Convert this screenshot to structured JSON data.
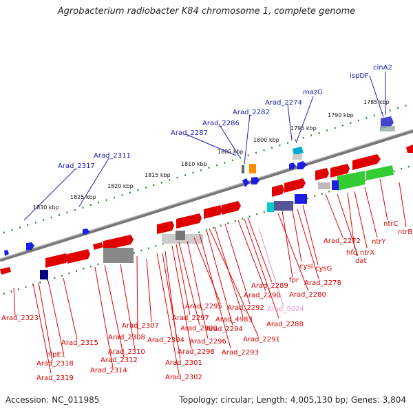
{
  "title": "Agrobacterium radiobacter K84 chromosome 1, complete genome",
  "accession": "Accession: NC_011985",
  "topology": "Topology: circular; Length: 4,005,130 bp; Genes: 3,804",
  "colors": {
    "forward_gene": "#e00000",
    "reverse_gene": "#1e1ee0",
    "label_forward": "#d80000",
    "label_reverse": "#1a1ab0",
    "pseudo_label": "#f090c8",
    "axis_dots": "#2e8b2e",
    "backbone": "#8a8a8a"
  },
  "scale_ticks": [
    "1785 kbp",
    "1790 kbp",
    "1795 kbp",
    "1800 kbp",
    "1805 kbp",
    "1810 kbp",
    "1815 kbp",
    "1820 kbp",
    "1825 kbp",
    "1830 kbp"
  ],
  "top_labels": [
    "cinA2",
    "ispDF",
    "mazG",
    "Arad_2274",
    "Arad_2282",
    "Arad_2286",
    "Arad_2287",
    "Arad_2311",
    "Arad_2317"
  ],
  "bottom_labels": [
    "ntrB",
    "ntrC",
    "ntrY",
    "ntrX",
    "hfq",
    "dat",
    "Arad_2272",
    "cysG",
    "cysI",
    "Arad_2278",
    "fpr",
    "Arad_2280",
    "Arad_2289",
    "Arad_2290",
    "Arad_5024",
    "Arad_2288",
    "Arad_2292",
    "Arad_4983",
    "Arad_2294",
    "Arad_2291",
    "Arad_2295",
    "Arad_2297",
    "Arad_2296",
    "Arad_2300",
    "Arad_2298",
    "Arad_2293",
    "Arad_2307",
    "Arad_2304",
    "Arad_2308",
    "Arad_2301",
    "Arad_2302",
    "Arad_2310",
    "Arad_2312",
    "Arad_2314",
    "Arad_2315",
    "nlpE1",
    "Arad_2318",
    "Arad_2319",
    "Arad_2323"
  ]
}
